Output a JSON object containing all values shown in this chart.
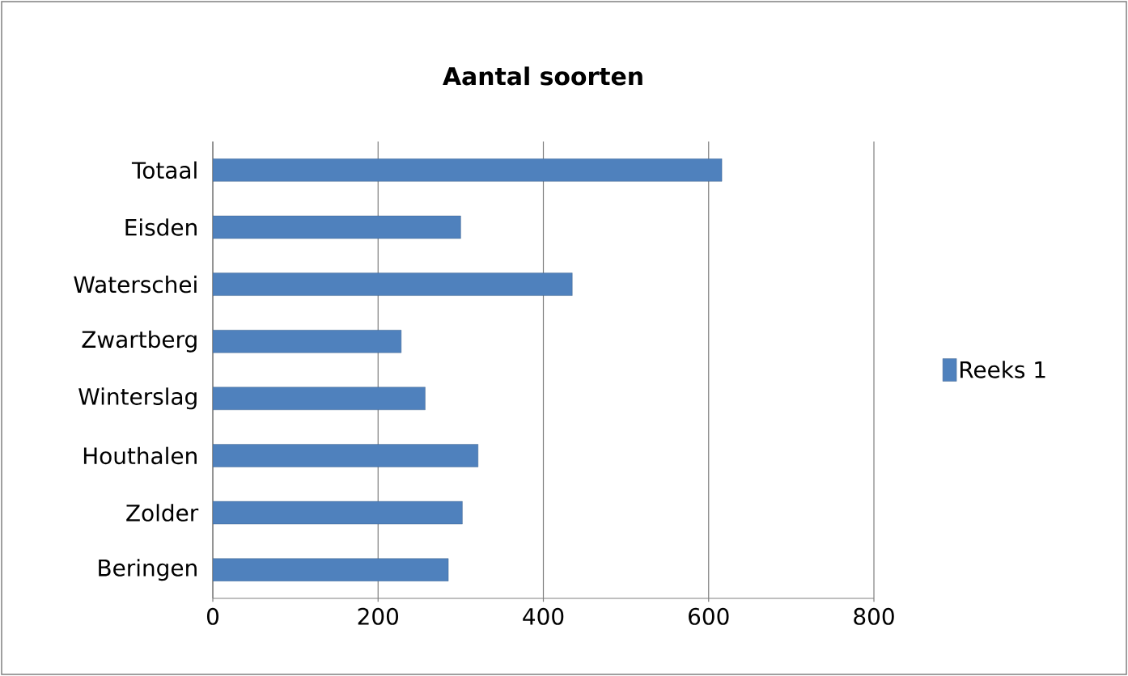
{
  "chart_data": {
    "type": "bar",
    "orientation": "horizontal",
    "title": "Aantal soorten",
    "categories": [
      "Totaal",
      "Eisden",
      "Waterschei",
      "Zwartberg",
      "Winterslag",
      "Houthalen",
      "Zolder",
      "Beringen"
    ],
    "series": [
      {
        "name": "Reeks 1",
        "color": "#4f81bd",
        "values": [
          616,
          300,
          435,
          228,
          257,
          321,
          302,
          285
        ]
      }
    ],
    "xlim": [
      0,
      800
    ],
    "xticks": [
      0,
      200,
      400,
      600,
      800
    ],
    "grid": "x",
    "legend": "right"
  }
}
